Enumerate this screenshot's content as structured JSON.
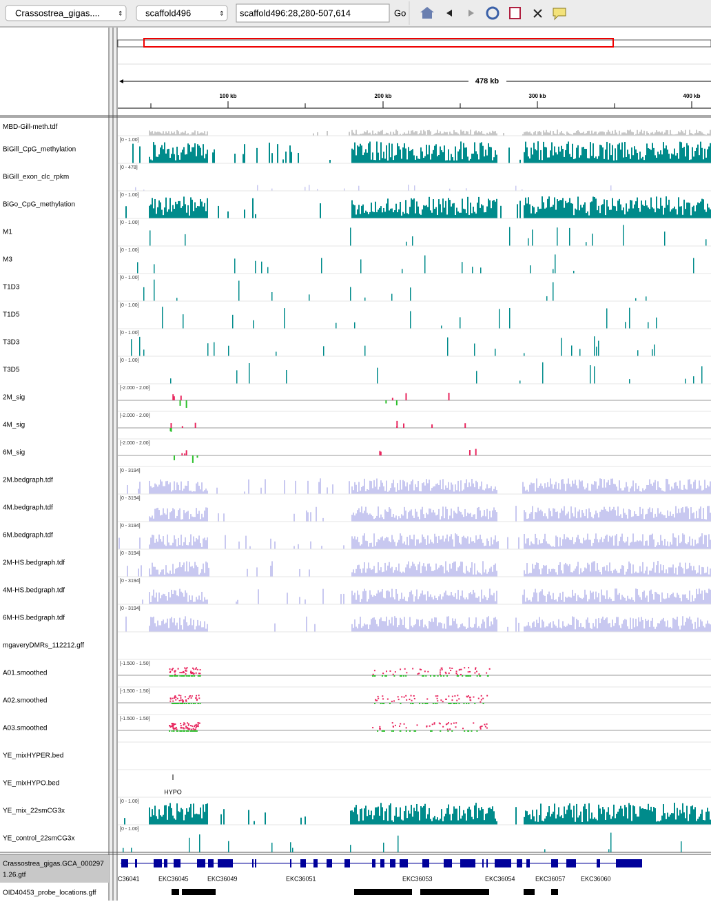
{
  "toolbar": {
    "genome": "Crassostrea_gigas....",
    "chromosome": "scaffold496",
    "locus": "scaffold496:28,280-507,614",
    "go": "Go"
  },
  "ruler": {
    "span": "478 kb",
    "ticks": [
      "100 kb",
      "200 kb",
      "300 kb",
      "400 kb"
    ]
  },
  "tracks": [
    {
      "name": "MBD-Gill-meth.tdf",
      "color": "#c8c8c8"
    },
    {
      "name": "BiGill_CpG_methylation",
      "range": "[0 - 1.00]",
      "color": "#008b8b"
    },
    {
      "name": "BiGill_exon_clc_rpkm",
      "range": "[0 - 478]",
      "color": "#c8c8f0"
    },
    {
      "name": "BiGo_CpG_methylation",
      "range": "[0 - 1.00]",
      "color": "#008b8b"
    },
    {
      "name": "M1",
      "range": "[0 - 1.00]",
      "color": "#008b8b"
    },
    {
      "name": "M3",
      "range": "[0 - 1.00]",
      "color": "#008b8b"
    },
    {
      "name": "T1D3",
      "range": "[0 - 1.00]",
      "color": "#008b8b"
    },
    {
      "name": "T1D5",
      "range": "[0 - 1.00]",
      "color": "#008b8b"
    },
    {
      "name": "T3D3",
      "range": "[0 - 1.00]",
      "color": "#008b8b"
    },
    {
      "name": "T3D5",
      "range": "[0 - 1.00]",
      "color": "#008b8b"
    },
    {
      "name": "2M_sig",
      "range": "[-2.000 - 2.00]",
      "color": "#e8265e"
    },
    {
      "name": "4M_sig",
      "range": "[-2.000 - 2.00]",
      "color": "#e8265e"
    },
    {
      "name": "6M_sig",
      "range": "[-2.000 - 2.00]",
      "color": "#e8265e"
    },
    {
      "name": "2M.bedgraph.tdf",
      "range": "[0 - 3194]",
      "color": "#c8c8f0"
    },
    {
      "name": "4M.bedgraph.tdf",
      "range": "[0 - 3194]",
      "color": "#c8c8f0"
    },
    {
      "name": "6M.bedgraph.tdf",
      "range": "[0 - 3194]",
      "color": "#c8c8f0"
    },
    {
      "name": "2M-HS.bedgraph.tdf",
      "range": "[0 - 3194]",
      "color": "#c8c8f0"
    },
    {
      "name": "4M-HS.bedgraph.tdf",
      "range": "[0 - 3194]",
      "color": "#c8c8f0"
    },
    {
      "name": "6M-HS.bedgraph.tdf",
      "range": "[0 - 3194]",
      "color": "#c8c8f0"
    },
    {
      "name": "mgaveryDMRs_112212.gff"
    },
    {
      "name": "A01.smoothed",
      "range": "[-1.500 - 1.50]",
      "color": "#e8265e"
    },
    {
      "name": "A02.smoothed",
      "range": "[-1.500 - 1.50]",
      "color": "#e8265e"
    },
    {
      "name": "A03.smoothed",
      "range": "[-1.500 - 1.50]",
      "color": "#e8265e"
    },
    {
      "name": "YE_mixHYPER.bed"
    },
    {
      "name": "YE_mixHYPO.bed",
      "feature_label": "HYPO"
    },
    {
      "name": "YE_mix_22smCG3x",
      "range": "[0 - 1.00]",
      "color": "#008b8b"
    },
    {
      "name": "YE_control_22smCG3x",
      "range": "[0 - 1.00]",
      "color": "#008b8b"
    }
  ],
  "gene_track": {
    "name_lines": [
      "Crassostrea_gigas.GCA_000297",
      "1.26.gtf"
    ],
    "genes": [
      "C36041",
      "EKC36045",
      "EKC36049",
      "EKC36051",
      "EKC36053",
      "EKC36054",
      "EKC36057",
      "EKC36060"
    ]
  },
  "probe_track": {
    "name": "OID40453_probe_locations.gff"
  }
}
